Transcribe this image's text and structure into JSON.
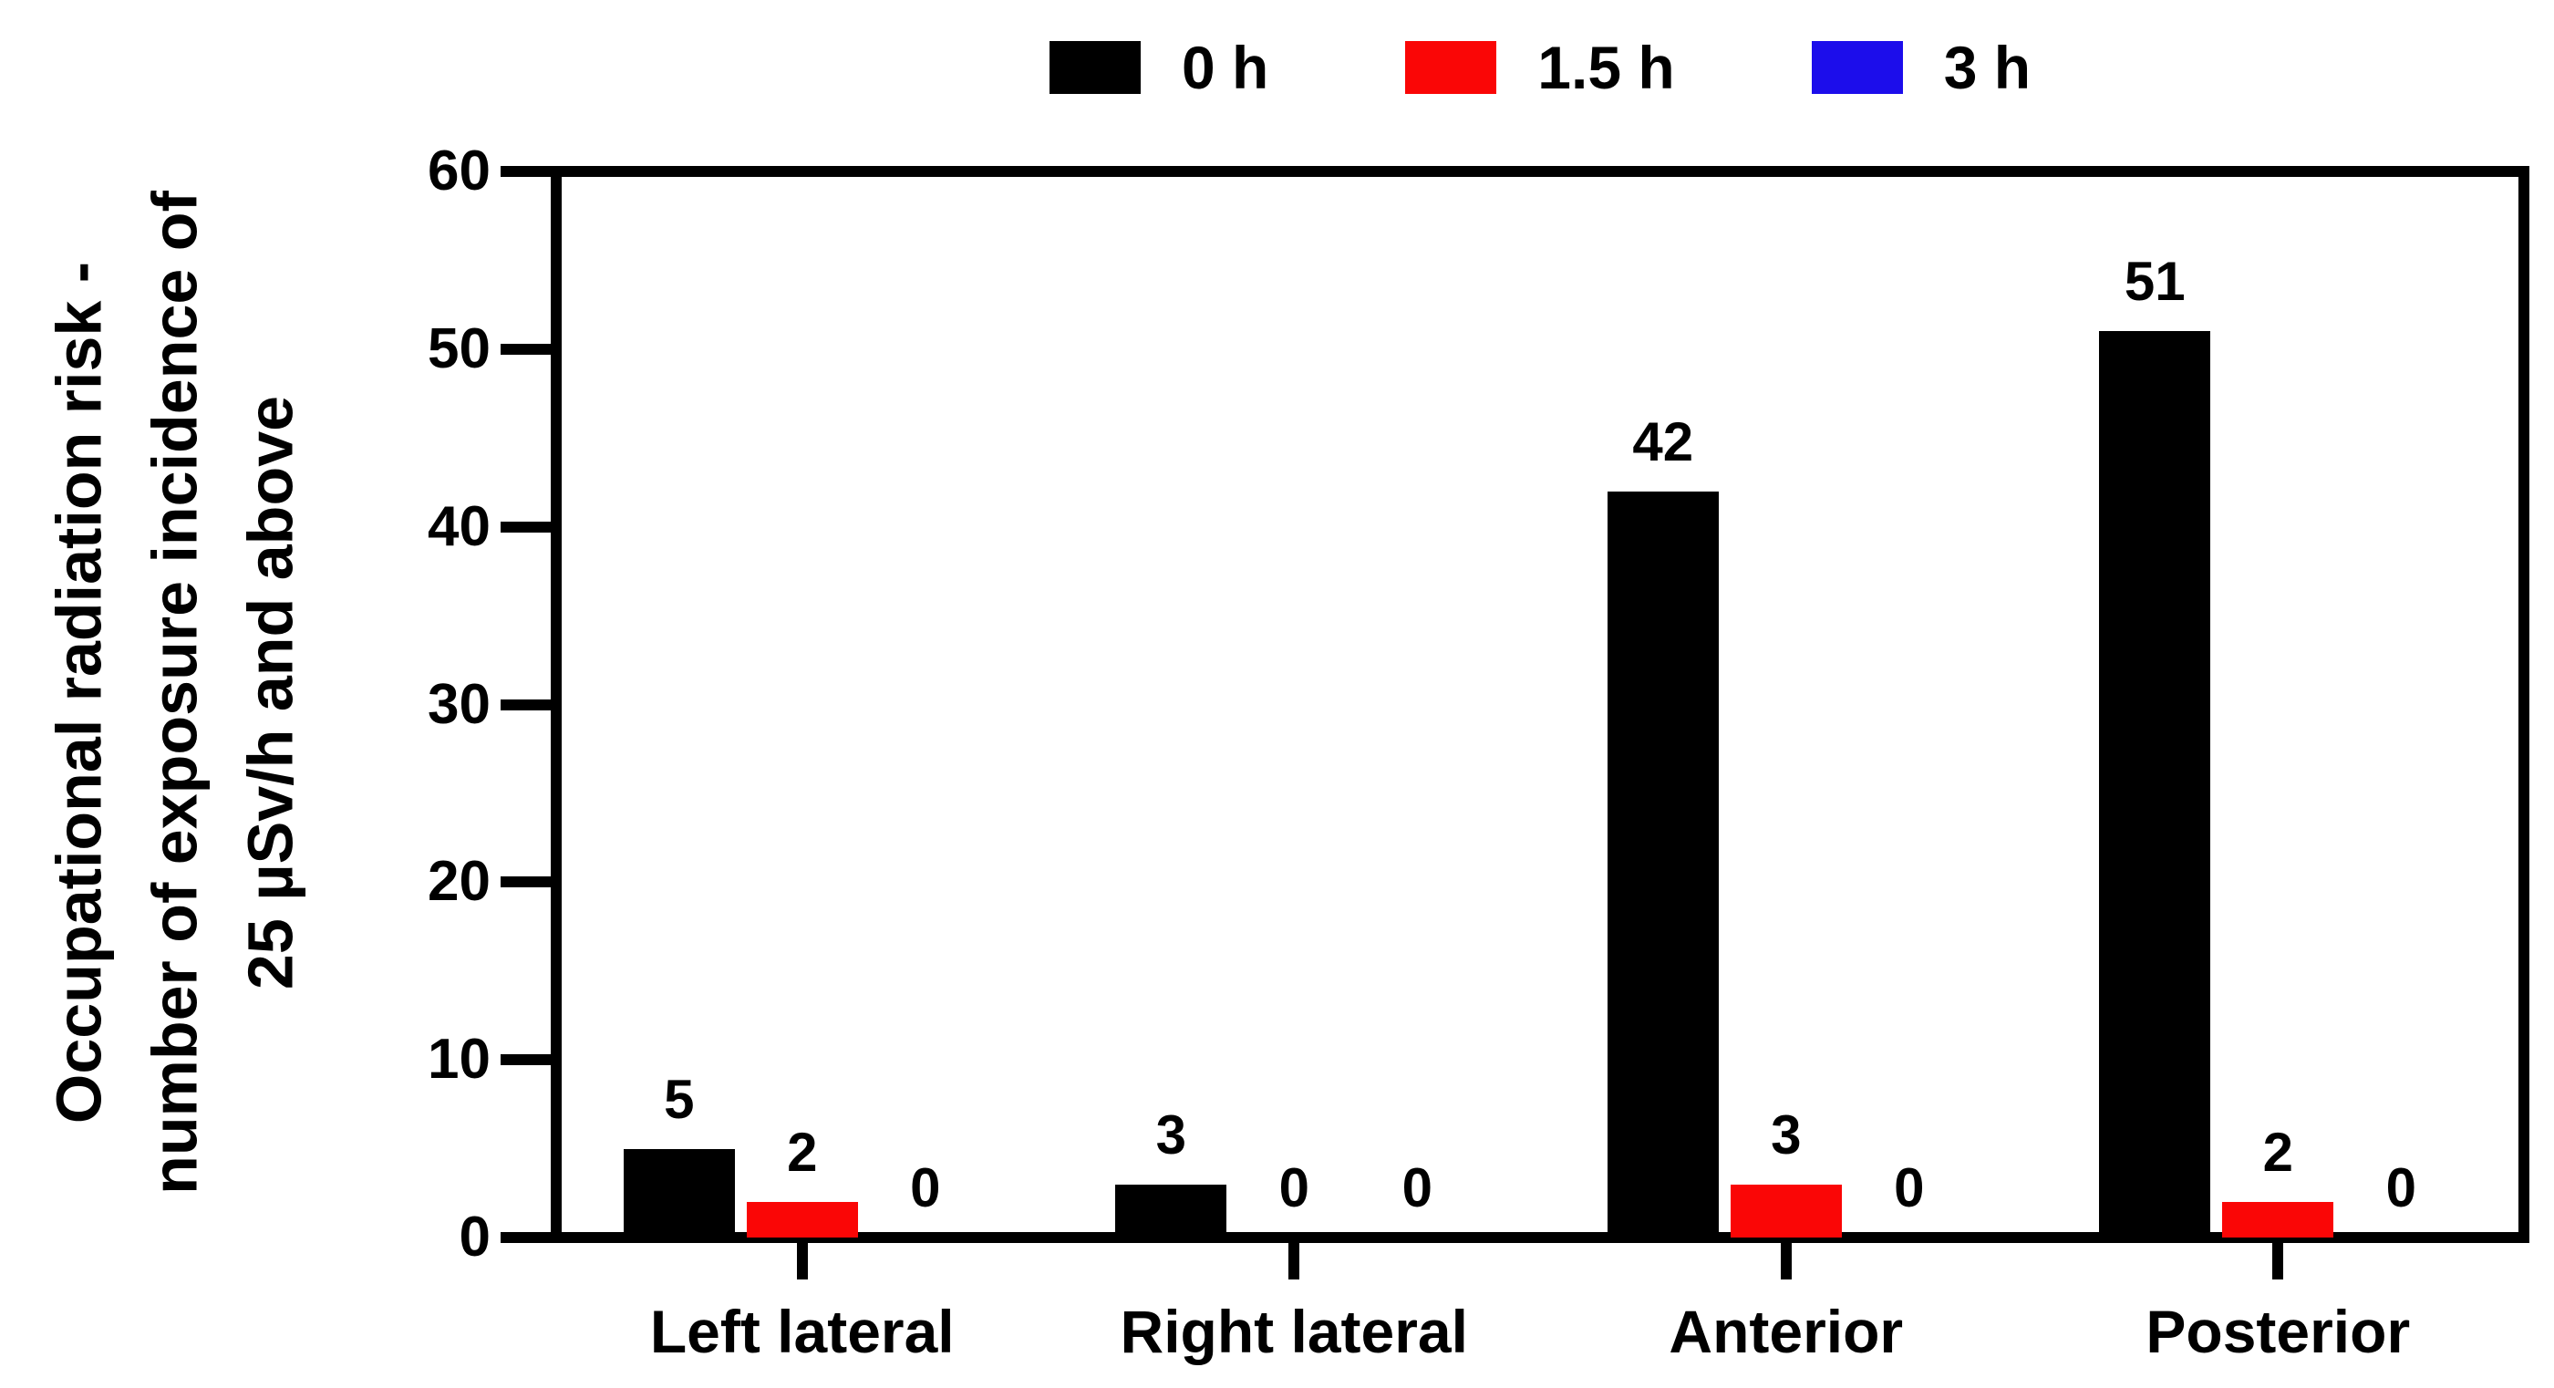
{
  "chart_data": {
    "type": "bar",
    "title": "",
    "categories": [
      "Left lateral",
      "Right lateral",
      "Anterior",
      "Posterior"
    ],
    "series": [
      {
        "name": "0 h",
        "color": "#000000",
        "values": [
          5,
          3,
          42,
          51
        ]
      },
      {
        "name": "1.5 h",
        "color": "#FA0606",
        "values": [
          2,
          0,
          3,
          2
        ]
      },
      {
        "name": "3 h",
        "color": "#1C0DEB",
        "values": [
          0,
          0,
          0,
          0
        ]
      }
    ],
    "bar_value_labels": [
      [
        "5",
        "2",
        "0"
      ],
      [
        "3",
        "0",
        "0"
      ],
      [
        "42",
        "3",
        "0"
      ],
      [
        "51",
        "2",
        "0"
      ]
    ],
    "ylabel_lines": [
      "Occupational radiation risk -",
      "number of exposure incidence of",
      "25 µSv/h and above"
    ],
    "yticks": [
      "0",
      "10",
      "20",
      "30",
      "40",
      "50",
      "60"
    ],
    "ylim": [
      0,
      60
    ],
    "grid": false,
    "legend_position": "top",
    "axis_color": "#000000",
    "background_color": "#FFFFFF"
  },
  "legend": {
    "items": [
      {
        "label": "0 h",
        "color": "#000000"
      },
      {
        "label": "1.5 h",
        "color": "#FA0606"
      },
      {
        "label": "3 h",
        "color": "#1C0DEB"
      }
    ]
  }
}
